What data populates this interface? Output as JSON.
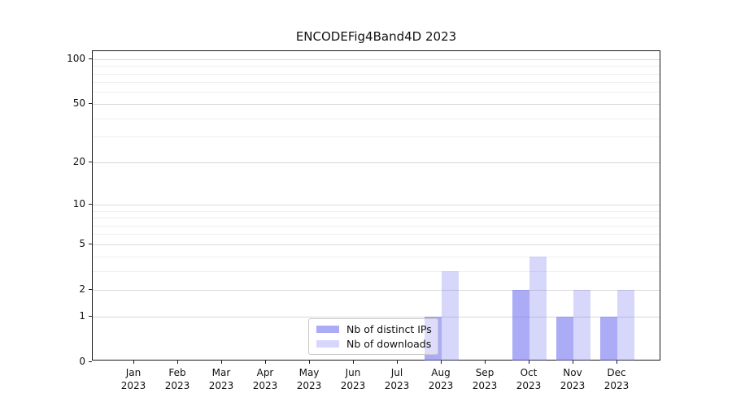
{
  "title": "ENCODEFig4Band4D 2023",
  "chart_data": {
    "type": "bar",
    "title": "ENCODEFig4Band4D 2023",
    "categories": [
      "Jan",
      "Feb",
      "Mar",
      "Apr",
      "May",
      "Jun",
      "Jul",
      "Aug",
      "Sep",
      "Oct",
      "Nov",
      "Dec"
    ],
    "x_year_label": "2023",
    "series": [
      {
        "name": "Nb of distinct IPs",
        "values": [
          0,
          0,
          0,
          0,
          0,
          0,
          0,
          1,
          0,
          2,
          1,
          1
        ]
      },
      {
        "name": "Nb of downloads",
        "values": [
          0,
          0,
          0,
          0,
          0,
          0,
          0,
          3,
          0,
          4,
          2,
          2
        ]
      }
    ],
    "y_axis": {
      "scale": "log(value+1)",
      "tick_values": [
        0,
        1,
        2,
        5,
        10,
        20,
        50,
        100
      ],
      "tick_labels": [
        "0",
        "1",
        "2",
        "5",
        "10",
        "20",
        "50",
        "100"
      ],
      "minor_gridline_values": [
        3,
        4,
        6,
        7,
        8,
        9,
        30,
        40,
        60,
        70,
        80,
        90
      ],
      "max_value": 111
    },
    "legend": {
      "position": "lower center",
      "entries": [
        "Nb of distinct IPs",
        "Nb of downloads"
      ]
    },
    "grid": "both",
    "colors": {
      "bar_distinct_ips": "rgba(102,102,238,0.55)",
      "bar_downloads": "rgba(102,102,238,0.26)",
      "grid_major": "#d9d9d9",
      "grid_minor": "#efefef",
      "spine": "#1a1a1a"
    }
  }
}
